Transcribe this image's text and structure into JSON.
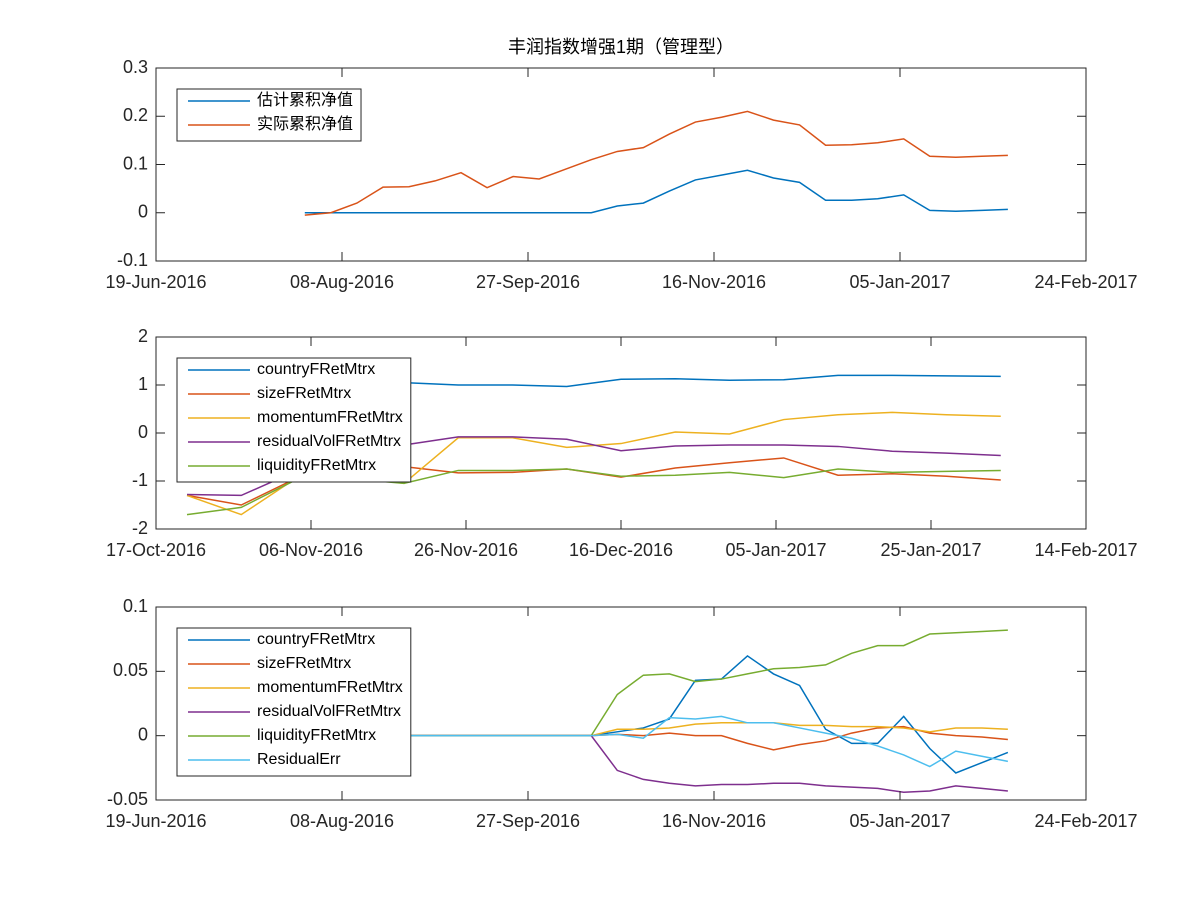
{
  "chart_data": [
    {
      "type": "line",
      "title": "丰润指数增强1期（管理型）",
      "x": [
        "2016-07-29",
        "2016-08-05",
        "2016-08-12",
        "2016-08-19",
        "2016-08-26",
        "2016-09-02",
        "2016-09-09",
        "2016-09-16",
        "2016-09-23",
        "2016-09-30",
        "2016-10-07",
        "2016-10-14",
        "2016-10-21",
        "2016-10-28",
        "2016-11-04",
        "2016-11-11",
        "2016-11-18",
        "2016-11-25",
        "2016-12-02",
        "2016-12-09",
        "2016-12-16",
        "2016-12-23",
        "2016-12-30",
        "2017-01-06",
        "2017-01-13",
        "2017-01-20",
        "2017-01-27",
        "2017-02-03"
      ],
      "xlim": [
        "2016-06-19",
        "2017-02-24"
      ],
      "xticks": [
        {
          "value": "2016-06-19",
          "label": "19-Jun-2016"
        },
        {
          "value": "2016-08-08",
          "label": "08-Aug-2016"
        },
        {
          "value": "2016-09-27",
          "label": "27-Sep-2016"
        },
        {
          "value": "2016-11-16",
          "label": "16-Nov-2016"
        },
        {
          "value": "2017-01-05",
          "label": "05-Jan-2017"
        },
        {
          "value": "2017-02-24",
          "label": "24-Feb-2017"
        }
      ],
      "ylim": [
        -0.1,
        0.3
      ],
      "yticks": [
        -0.1,
        0,
        0.1,
        0.2,
        0.3
      ],
      "grid": false,
      "legend": "upper-left",
      "series": [
        {
          "name": "估计累积净值",
          "color": "#0072BD",
          "values": [
            0,
            0,
            0,
            0,
            0,
            0,
            0,
            0,
            0,
            0,
            0,
            0,
            0.014,
            0.02,
            0.045,
            0.068,
            0.078,
            0.088,
            0.072,
            0.063,
            0.026,
            0.026,
            0.029,
            0.037,
            0.005,
            0.003,
            0.005,
            0.007
          ]
        },
        {
          "name": "实际累积净值",
          "color": "#D95319",
          "values": [
            -0.005,
            0,
            0.02,
            0.053,
            0.054,
            0.066,
            0.083,
            0.052,
            0.075,
            0.07,
            0.09,
            0.11,
            0.127,
            0.135,
            0.163,
            0.188,
            0.198,
            0.21,
            0.192,
            0.182,
            0.14,
            0.141,
            0.145,
            0.153,
            0.117,
            0.115,
            0.117,
            0.119
          ]
        }
      ]
    },
    {
      "type": "line",
      "x": [
        "2016-10-21",
        "2016-10-28",
        "2016-11-04",
        "2016-11-11",
        "2016-11-18",
        "2016-11-25",
        "2016-12-02",
        "2016-12-09",
        "2016-12-16",
        "2016-12-23",
        "2016-12-30",
        "2017-01-06",
        "2017-01-13",
        "2017-01-20",
        "2017-01-27",
        "2017-02-03"
      ],
      "xlim": [
        "2016-10-17",
        "2017-02-14"
      ],
      "xticks": [
        {
          "value": "2016-10-17",
          "label": "17-Oct-2016"
        },
        {
          "value": "2016-11-06",
          "label": "06-Nov-2016"
        },
        {
          "value": "2016-11-26",
          "label": "26-Nov-2016"
        },
        {
          "value": "2016-12-16",
          "label": "16-Dec-2016"
        },
        {
          "value": "2017-01-05",
          "label": "05-Jan-2017"
        },
        {
          "value": "2017-01-25",
          "label": "25-Jan-2017"
        },
        {
          "value": "2017-02-14",
          "label": "14-Feb-2017"
        }
      ],
      "ylim": [
        -2,
        2
      ],
      "yticks": [
        -2,
        -1,
        0,
        1,
        2
      ],
      "grid": false,
      "legend": "upper-left",
      "series": [
        {
          "name": "countryFRetMtrx",
          "color": "#0072BD",
          "values": [
            0.9,
            1.0,
            1.05,
            1.05,
            1.05,
            1.0,
            1.0,
            0.97,
            1.12,
            1.13,
            1.1,
            1.11,
            1.2,
            1.2,
            1.19,
            1.18
          ]
        },
        {
          "name": "sizeFRetMtrx",
          "color": "#D95319",
          "values": [
            -1.3,
            -1.5,
            -0.95,
            -0.9,
            -0.7,
            -0.83,
            -0.82,
            -0.75,
            -0.92,
            -0.73,
            -0.62,
            -0.52,
            -0.88,
            -0.85,
            -0.9,
            -0.98
          ]
        },
        {
          "name": "momentumFRetMtrx",
          "color": "#EDB120",
          "values": [
            -1.3,
            -1.7,
            -0.95,
            -0.9,
            -1.05,
            -0.1,
            -0.1,
            -0.3,
            -0.22,
            0.02,
            -0.02,
            0.28,
            0.38,
            0.43,
            0.38,
            0.35
          ]
        },
        {
          "name": "residualVolFRetMtrx",
          "color": "#7E2F8E",
          "values": [
            -1.28,
            -1.3,
            -0.8,
            -0.6,
            -0.25,
            -0.08,
            -0.08,
            -0.13,
            -0.37,
            -0.27,
            -0.25,
            -0.25,
            -0.28,
            -0.38,
            -0.42,
            -0.47
          ]
        },
        {
          "name": "liquidityFRetMtrx",
          "color": "#77AC30",
          "values": [
            -1.7,
            -1.55,
            -0.98,
            -0.95,
            -1.05,
            -0.78,
            -0.78,
            -0.75,
            -0.9,
            -0.88,
            -0.82,
            -0.93,
            -0.75,
            -0.82,
            -0.8,
            -0.78
          ]
        }
      ]
    },
    {
      "type": "line",
      "x": [
        "2016-07-29",
        "2016-08-05",
        "2016-08-12",
        "2016-08-19",
        "2016-08-26",
        "2016-09-02",
        "2016-09-09",
        "2016-09-16",
        "2016-09-23",
        "2016-09-30",
        "2016-10-07",
        "2016-10-14",
        "2016-10-21",
        "2016-10-28",
        "2016-11-04",
        "2016-11-11",
        "2016-11-18",
        "2016-11-25",
        "2016-12-02",
        "2016-12-09",
        "2016-12-16",
        "2016-12-23",
        "2016-12-30",
        "2017-01-06",
        "2017-01-13",
        "2017-01-20",
        "2017-01-27",
        "2017-02-03"
      ],
      "xlim": [
        "2016-06-19",
        "2017-02-24"
      ],
      "xticks": [
        {
          "value": "2016-06-19",
          "label": "19-Jun-2016"
        },
        {
          "value": "2016-08-08",
          "label": "08-Aug-2016"
        },
        {
          "value": "2016-09-27",
          "label": "27-Sep-2016"
        },
        {
          "value": "2016-11-16",
          "label": "16-Nov-2016"
        },
        {
          "value": "2017-01-05",
          "label": "05-Jan-2017"
        },
        {
          "value": "2017-02-24",
          "label": "24-Feb-2017"
        }
      ],
      "ylim": [
        -0.05,
        0.1
      ],
      "yticks": [
        -0.05,
        0,
        0.05,
        0.1
      ],
      "grid": false,
      "legend": "upper-left",
      "series": [
        {
          "name": "countryFRetMtrx",
          "color": "#0072BD",
          "values": [
            0,
            0,
            0,
            0,
            0,
            0,
            0,
            0,
            0,
            0,
            0,
            0,
            0.003,
            0.006,
            0.013,
            0.043,
            0.044,
            0.062,
            0.048,
            0.039,
            0.005,
            -0.006,
            -0.006,
            0.015,
            -0.01,
            -0.029,
            -0.021,
            -0.013
          ]
        },
        {
          "name": "sizeFRetMtrx",
          "color": "#D95319",
          "values": [
            0,
            0,
            0,
            0,
            0,
            0,
            0,
            0,
            0,
            0,
            0,
            0,
            0.001,
            0,
            0.002,
            0,
            0,
            -0.006,
            -0.011,
            -0.007,
            -0.004,
            0.002,
            0.006,
            0.007,
            0.002,
            0,
            -0.001,
            -0.003
          ]
        },
        {
          "name": "momentumFRetMtrx",
          "color": "#EDB120",
          "values": [
            0,
            0,
            0,
            0,
            0,
            0,
            0,
            0,
            0,
            0,
            0,
            0,
            0.005,
            0.005,
            0.006,
            0.009,
            0.01,
            0.01,
            0.01,
            0.008,
            0.008,
            0.007,
            0.007,
            0.006,
            0.003,
            0.006,
            0.006,
            0.005
          ]
        },
        {
          "name": "residualVolFRetMtrx",
          "color": "#7E2F8E",
          "values": [
            0,
            0,
            0,
            0,
            0,
            0,
            0,
            0,
            0,
            0,
            0,
            0,
            -0.027,
            -0.034,
            -0.037,
            -0.039,
            -0.038,
            -0.038,
            -0.037,
            -0.037,
            -0.039,
            -0.04,
            -0.041,
            -0.044,
            -0.043,
            -0.039,
            -0.041,
            -0.043
          ]
        },
        {
          "name": "liquidityFRetMtrx",
          "color": "#77AC30",
          "values": [
            0,
            0,
            0,
            0,
            0,
            0,
            0,
            0,
            0,
            0,
            0,
            0,
            0.032,
            0.047,
            0.048,
            0.042,
            0.044,
            0.048,
            0.052,
            0.053,
            0.055,
            0.064,
            0.07,
            0.07,
            0.079,
            0.08,
            0.081,
            0.082
          ]
        },
        {
          "name": "ResidualErr",
          "color": "#4DBEEE",
          "values": [
            0,
            0,
            0,
            0,
            0,
            0,
            0,
            0,
            0,
            0,
            0,
            0,
            0.001,
            -0.002,
            0.014,
            0.013,
            0.015,
            0.01,
            0.01,
            0.006,
            0.002,
            -0.002,
            -0.008,
            -0.015,
            -0.024,
            -0.012,
            -0.016,
            -0.02
          ]
        }
      ]
    }
  ]
}
